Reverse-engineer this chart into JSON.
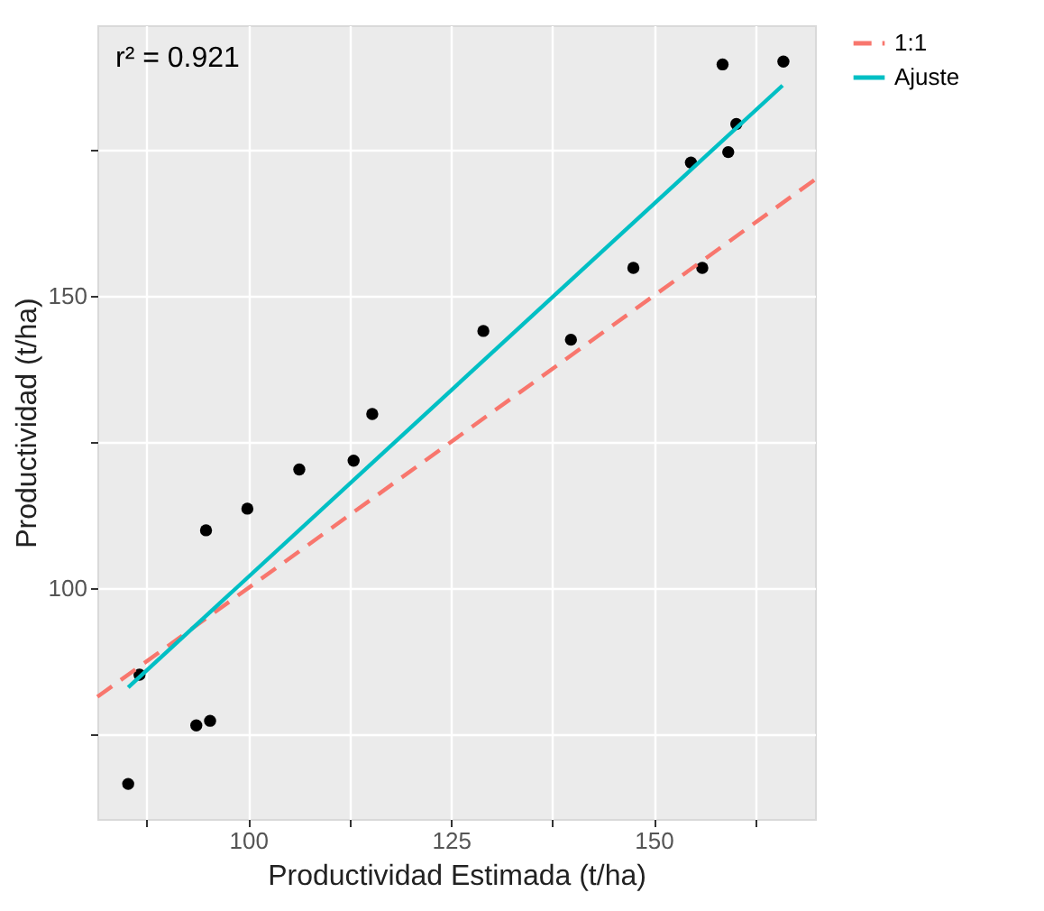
{
  "chart_data": {
    "type": "scatter",
    "xlabel": "Productividad Estimada (t/ha)",
    "ylabel": "Productividad (t/ha)",
    "xlim": [
      81.4,
      169.9
    ],
    "ylim": [
      60.5,
      196.3
    ],
    "xticks": [
      {
        "value": 87.5,
        "label": null
      },
      100,
      {
        "value": 112.5,
        "label": null
      },
      125,
      {
        "value": 137.5,
        "label": null
      },
      150,
      {
        "value": 162.5,
        "label": null
      }
    ],
    "yticks": [
      {
        "value": 75,
        "label": null
      },
      100,
      {
        "value": 125,
        "label": null
      },
      150,
      {
        "value": 175,
        "label": null
      }
    ],
    "grid": true,
    "legend": "right",
    "annotations": [
      "r² = 0.921"
    ],
    "series": [
      {
        "type": "scatter",
        "color": "#000000",
        "x": [
          85.2,
          86.6,
          93.6,
          95.3,
          94.8,
          99.9,
          106.3,
          113.0,
          115.3,
          129.0,
          139.8,
          147.5,
          156.0,
          154.6,
          159.2,
          160.2,
          158.5,
          166.0
        ],
        "values": [
          66.5,
          85.2,
          76.5,
          77.3,
          109.9,
          113.6,
          120.3,
          121.8,
          129.8,
          144.0,
          142.5,
          154.8,
          154.8,
          172.8,
          174.6,
          179.4,
          189.6,
          190.1
        ]
      },
      {
        "type": "line",
        "name": "1:1",
        "color": "#f8766d",
        "line_style": "dashed",
        "x": [
          81.4,
          169.9
        ],
        "values": [
          81.4,
          169.9
        ]
      },
      {
        "type": "line",
        "name": "Ajuste",
        "color": "#00bfc4",
        "line_style": "solid",
        "x": [
          85.2,
          165.9
        ],
        "values": [
          83.0,
          186.0
        ]
      }
    ]
  }
}
